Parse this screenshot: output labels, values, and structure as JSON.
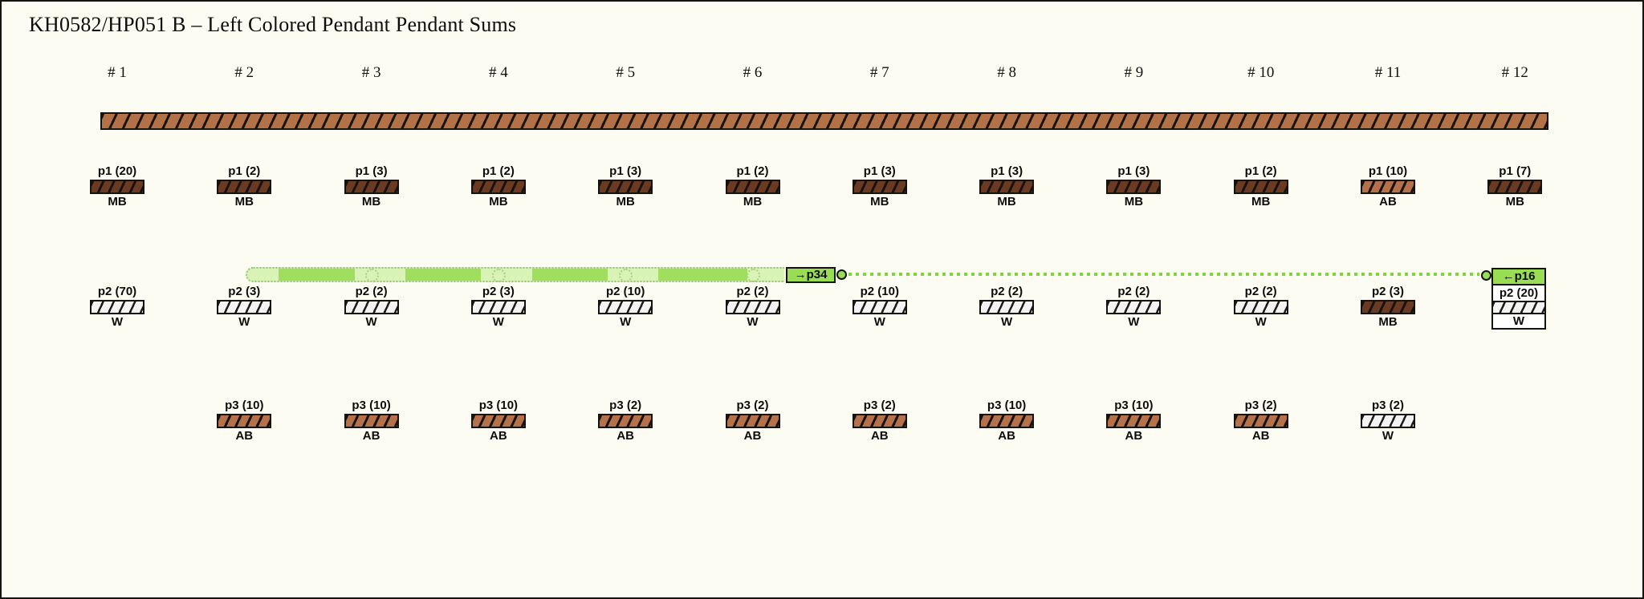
{
  "title": "KH0582/HP051 B – Left Colored Pendant Pendant Sums",
  "palette": {
    "background": "#fdfcf2",
    "MB": "#6a3b22",
    "AB": "#b4714a",
    "W": "#f3f3f1",
    "primary_cord": "#b27146",
    "highlight_pale": "#d9f3b6",
    "highlight_bright": "#9fdf5d",
    "link_green": "#7ed63a",
    "tag_green": "#99dd55"
  },
  "columns": [
    {
      "header": "# 1",
      "p1": {
        "label": "p1 (20)",
        "code": "MB"
      },
      "p2": {
        "label": "p2 (70)",
        "code": "W"
      }
    },
    {
      "header": "# 2",
      "p1": {
        "label": "p1 (2)",
        "code": "MB"
      },
      "p2": {
        "label": "p2 (3)",
        "code": "W"
      },
      "p3": {
        "label": "p3 (10)",
        "code": "AB"
      }
    },
    {
      "header": "# 3",
      "p1": {
        "label": "p1 (3)",
        "code": "MB"
      },
      "p2": {
        "label": "p2 (2)",
        "code": "W"
      },
      "p3": {
        "label": "p3 (10)",
        "code": "AB"
      }
    },
    {
      "header": "# 4",
      "p1": {
        "label": "p1 (2)",
        "code": "MB"
      },
      "p2": {
        "label": "p2 (3)",
        "code": "W"
      },
      "p3": {
        "label": "p3 (10)",
        "code": "AB"
      }
    },
    {
      "header": "# 5",
      "p1": {
        "label": "p1 (3)",
        "code": "MB"
      },
      "p2": {
        "label": "p2 (10)",
        "code": "W"
      },
      "p3": {
        "label": "p3 (2)",
        "code": "AB"
      }
    },
    {
      "header": "# 6",
      "p1": {
        "label": "p1 (2)",
        "code": "MB"
      },
      "p2": {
        "label": "p2 (2)",
        "code": "W"
      },
      "p3": {
        "label": "p3 (2)",
        "code": "AB"
      }
    },
    {
      "header": "# 7",
      "p1": {
        "label": "p1 (3)",
        "code": "MB"
      },
      "p2": {
        "label": "p2 (10)",
        "code": "W"
      },
      "p3": {
        "label": "p3 (2)",
        "code": "AB"
      }
    },
    {
      "header": "# 8",
      "p1": {
        "label": "p1 (3)",
        "code": "MB"
      },
      "p2": {
        "label": "p2 (2)",
        "code": "W"
      },
      "p3": {
        "label": "p3 (10)",
        "code": "AB"
      }
    },
    {
      "header": "# 9",
      "p1": {
        "label": "p1 (3)",
        "code": "MB"
      },
      "p2": {
        "label": "p2 (2)",
        "code": "W"
      },
      "p3": {
        "label": "p3 (10)",
        "code": "AB"
      }
    },
    {
      "header": "# 10",
      "p1": {
        "label": "p1 (2)",
        "code": "MB"
      },
      "p2": {
        "label": "p2 (2)",
        "code": "W"
      },
      "p3": {
        "label": "p3 (2)",
        "code": "AB"
      }
    },
    {
      "header": "# 11",
      "p1": {
        "label": "p1 (10)",
        "code": "AB"
      },
      "p2": {
        "label": "p2 (3)",
        "code": "MB"
      },
      "p3": {
        "label": "p3 (2)",
        "code": "W"
      }
    },
    {
      "header": "# 12",
      "p1": {
        "label": "p1 (7)",
        "code": "MB"
      }
    }
  ],
  "sum_links": {
    "p34": {
      "tag": "→p34"
    },
    "p16": {
      "tag": "←p16",
      "label": "p2 (20)",
      "code": "W"
    }
  }
}
